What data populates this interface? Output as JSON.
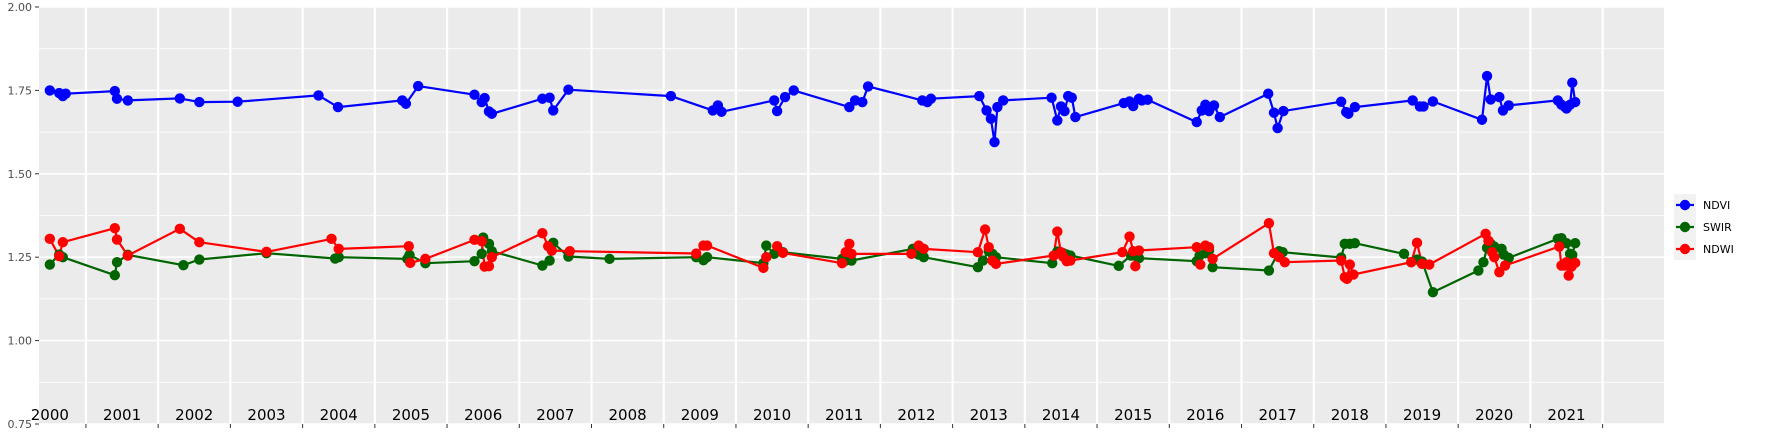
{
  "chart_data": {
    "type": "line",
    "title": "",
    "xlabel": "",
    "ylabel": "",
    "ylim": [
      0.75,
      2.0
    ],
    "y_ticks": [
      "0.75",
      "1.00",
      "1.25",
      "1.50",
      "1.75",
      "2.00"
    ],
    "x_range": [
      1999.85,
      2022.35
    ],
    "x_tick_labels": [
      "2000",
      "2001",
      "2002",
      "2003",
      "2004",
      "2005",
      "2006",
      "2007",
      "2008",
      "2009",
      "2010",
      "2011",
      "2012",
      "2013",
      "2014",
      "2015",
      "2016",
      "2017",
      "2018",
      "2019",
      "2020",
      "2021"
    ],
    "legend_position": "right",
    "grid": true,
    "series": [
      {
        "name": "NDVI",
        "color": "#0000FF",
        "x": [
          2000.0,
          2000.13,
          2000.18,
          2000.22,
          2000.9,
          2000.93,
          2001.08,
          2001.8,
          2002.07,
          2002.6,
          2003.72,
          2003.99,
          2004.88,
          2004.93,
          2005.1,
          2005.88,
          2005.98,
          2006.02,
          2006.08,
          2006.12,
          2006.82,
          2006.92,
          2006.97,
          2007.18,
          2008.6,
          2009.18,
          2009.25,
          2009.3,
          2010.03,
          2010.07,
          2010.18,
          2010.3,
          2011.07,
          2011.15,
          2011.25,
          2011.33,
          2012.08,
          2012.15,
          2012.2,
          2012.87,
          2012.97,
          2013.03,
          2013.08,
          2013.12,
          2013.2,
          2013.87,
          2013.95,
          2014.0,
          2014.05,
          2014.1,
          2014.15,
          2014.2,
          2014.87,
          2014.95,
          2015.0,
          2015.08,
          2015.12,
          2015.2,
          2015.88,
          2015.95,
          2016.0,
          2016.05,
          2016.12,
          2016.2,
          2016.87,
          2016.95,
          2017.0,
          2017.08,
          2017.88,
          2017.95,
          2017.98,
          2018.07,
          2018.87,
          2018.97,
          2019.02,
          2019.15,
          2019.83,
          2019.9,
          2019.95,
          2020.07,
          2020.12,
          2020.2,
          2020.88,
          2020.93,
          2020.98,
          2021.0,
          2021.02,
          2021.05,
          2021.08,
          2021.12
        ],
        "values": [
          1.75,
          1.742,
          1.733,
          1.74,
          1.748,
          1.725,
          1.72,
          1.726,
          1.715,
          1.716,
          1.735,
          1.7,
          1.72,
          1.71,
          1.763,
          1.737,
          1.715,
          1.727,
          1.687,
          1.68,
          1.725,
          1.728,
          1.69,
          1.752,
          1.733,
          1.69,
          1.705,
          1.686,
          1.72,
          1.688,
          1.73,
          1.75,
          1.7,
          1.72,
          1.715,
          1.762,
          1.72,
          1.715,
          1.725,
          1.733,
          1.69,
          1.665,
          1.595,
          1.7,
          1.72,
          1.728,
          1.66,
          1.702,
          1.688,
          1.733,
          1.728,
          1.67,
          1.712,
          1.717,
          1.703,
          1.725,
          1.72,
          1.722,
          1.655,
          1.69,
          1.707,
          1.688,
          1.705,
          1.67,
          1.74,
          1.683,
          1.637,
          1.688,
          1.716,
          1.685,
          1.68,
          1.7,
          1.72,
          1.702,
          1.702,
          1.717,
          1.662,
          1.793,
          1.723,
          1.73,
          1.69,
          1.705,
          1.72,
          1.707,
          1.7,
          1.696,
          1.702,
          1.707,
          1.773,
          1.715
        ]
      },
      {
        "name": "SWIR",
        "color": "#006400",
        "x": [
          2000.0,
          2000.13,
          2000.18,
          2000.9,
          2000.93,
          2001.08,
          2001.85,
          2002.07,
          2003.0,
          2003.95,
          2004.0,
          2004.95,
          2004.98,
          2005.2,
          2005.88,
          2005.98,
          2006.0,
          2006.08,
          2006.12,
          2006.82,
          2006.92,
          2006.97,
          2007.18,
          2007.75,
          2008.95,
          2009.05,
          2009.1,
          2009.88,
          2009.92,
          2010.03,
          2010.15,
          2010.97,
          2011.02,
          2011.07,
          2011.1,
          2011.95,
          2012.03,
          2012.1,
          2012.85,
          2012.92,
          2013.0,
          2013.05,
          2013.1,
          2013.88,
          2013.95,
          2014.03,
          2014.08,
          2014.13,
          2014.8,
          2014.97,
          2015.03,
          2015.08,
          2015.88,
          2015.92,
          2016.0,
          2016.05,
          2016.1,
          2016.88,
          2017.02,
          2017.07,
          2017.88,
          2017.93,
          2018.0,
          2018.07,
          2018.75,
          2018.85,
          2018.93,
          2019.0,
          2019.15,
          2019.78,
          2019.85,
          2019.9,
          2019.95,
          2020.0,
          2020.1,
          2020.13,
          2020.2,
          2020.88,
          2020.93,
          2021.0,
          2021.05,
          2021.08,
          2021.12
        ],
        "values": [
          1.228,
          1.258,
          1.25,
          1.196,
          1.235,
          1.257,
          1.226,
          1.243,
          1.262,
          1.246,
          1.25,
          1.245,
          1.257,
          1.232,
          1.238,
          1.26,
          1.309,
          1.29,
          1.268,
          1.225,
          1.24,
          1.293,
          1.252,
          1.245,
          1.25,
          1.241,
          1.25,
          1.232,
          1.285,
          1.26,
          1.265,
          1.245,
          1.24,
          1.25,
          1.24,
          1.275,
          1.258,
          1.25,
          1.22,
          1.24,
          1.268,
          1.26,
          1.25,
          1.232,
          1.267,
          1.262,
          1.258,
          1.255,
          1.224,
          1.255,
          1.26,
          1.247,
          1.238,
          1.255,
          1.262,
          1.27,
          1.22,
          1.21,
          1.268,
          1.265,
          1.249,
          1.29,
          1.29,
          1.292,
          1.26,
          1.235,
          1.243,
          1.237,
          1.145,
          1.21,
          1.235,
          1.278,
          1.29,
          1.282,
          1.275,
          1.258,
          1.248,
          1.305,
          1.307,
          1.292,
          1.26,
          1.257,
          1.292
        ]
      },
      {
        "name": "NDWI",
        "color": "#FF0000",
        "x": [
          2000.0,
          2000.13,
          2000.18,
          2000.9,
          2000.93,
          2001.08,
          2001.8,
          2002.07,
          2003.0,
          2003.9,
          2004.0,
          2004.97,
          2004.99,
          2005.2,
          2005.88,
          2005.98,
          2006.02,
          2006.08,
          2006.12,
          2006.82,
          2006.9,
          2006.95,
          2007.2,
          2008.95,
          2009.05,
          2009.1,
          2009.88,
          2009.92,
          2010.07,
          2010.15,
          2010.97,
          2011.02,
          2011.07,
          2011.1,
          2011.93,
          2012.03,
          2012.1,
          2012.85,
          2012.95,
          2013.0,
          2013.05,
          2013.1,
          2013.9,
          2013.95,
          2014.0,
          2014.03,
          2014.08,
          2014.13,
          2014.85,
          2014.95,
          2015.0,
          2015.03,
          2015.08,
          2015.88,
          2015.93,
          2016.0,
          2016.05,
          2016.1,
          2016.88,
          2016.95,
          2017.02,
          2017.1,
          2017.88,
          2017.93,
          2017.96,
          2018.0,
          2018.05,
          2018.85,
          2018.93,
          2019.0,
          2019.1,
          2019.88,
          2019.92,
          2019.97,
          2020.0,
          2020.07,
          2020.15,
          2020.9,
          2020.93,
          2020.97,
          2021.0,
          2021.03,
          2021.07,
          2021.12
        ],
        "values": [
          1.305,
          1.253,
          1.295,
          1.337,
          1.303,
          1.255,
          1.335,
          1.295,
          1.266,
          1.305,
          1.275,
          1.283,
          1.233,
          1.245,
          1.302,
          1.298,
          1.222,
          1.223,
          1.25,
          1.322,
          1.283,
          1.27,
          1.268,
          1.261,
          1.285,
          1.285,
          1.218,
          1.25,
          1.283,
          1.263,
          1.232,
          1.265,
          1.29,
          1.26,
          1.26,
          1.285,
          1.275,
          1.265,
          1.333,
          1.28,
          1.24,
          1.23,
          1.255,
          1.327,
          1.265,
          1.252,
          1.238,
          1.24,
          1.265,
          1.312,
          1.268,
          1.223,
          1.27,
          1.28,
          1.228,
          1.285,
          1.28,
          1.245,
          1.352,
          1.262,
          1.25,
          1.235,
          1.24,
          1.19,
          1.185,
          1.228,
          1.198,
          1.235,
          1.293,
          1.23,
          1.228,
          1.32,
          1.299,
          1.265,
          1.25,
          1.205,
          1.225,
          1.282,
          1.225,
          1.225,
          1.235,
          1.195,
          1.222,
          1.233
        ]
      }
    ]
  }
}
